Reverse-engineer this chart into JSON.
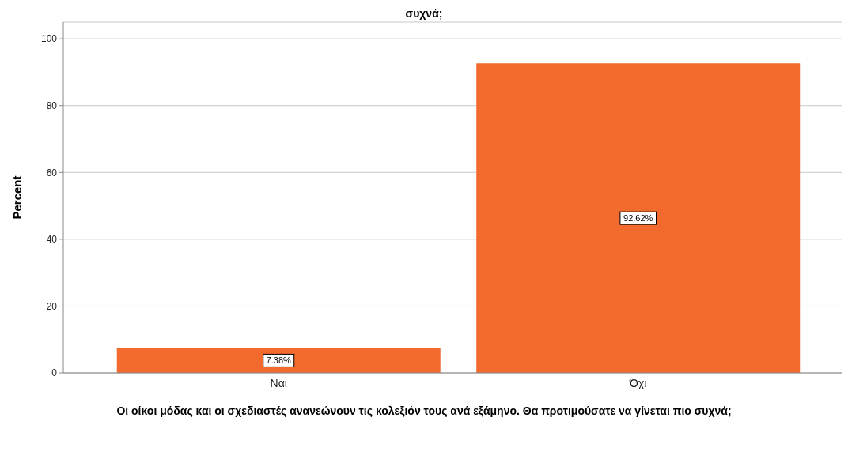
{
  "chart_data": {
    "type": "bar",
    "title": "συχνά;",
    "xlabel": "Οι οίκοι μόδας και οι σχεδιαστές ανανεώνουν τις κολεξιόν τους ανά εξάμηνο. Θα προτιμούσατε να γίνεται πιο συχνά;",
    "ylabel": "Percent",
    "categories": [
      "Ναι",
      "Όχι"
    ],
    "values": [
      7.38,
      92.62
    ],
    "value_labels": [
      "7.38%",
      "92.62%"
    ],
    "color": "#f26a2e",
    "ylim": [
      0,
      105
    ],
    "yticks": [
      0,
      20,
      40,
      60,
      80,
      100
    ],
    "grid": "y"
  }
}
